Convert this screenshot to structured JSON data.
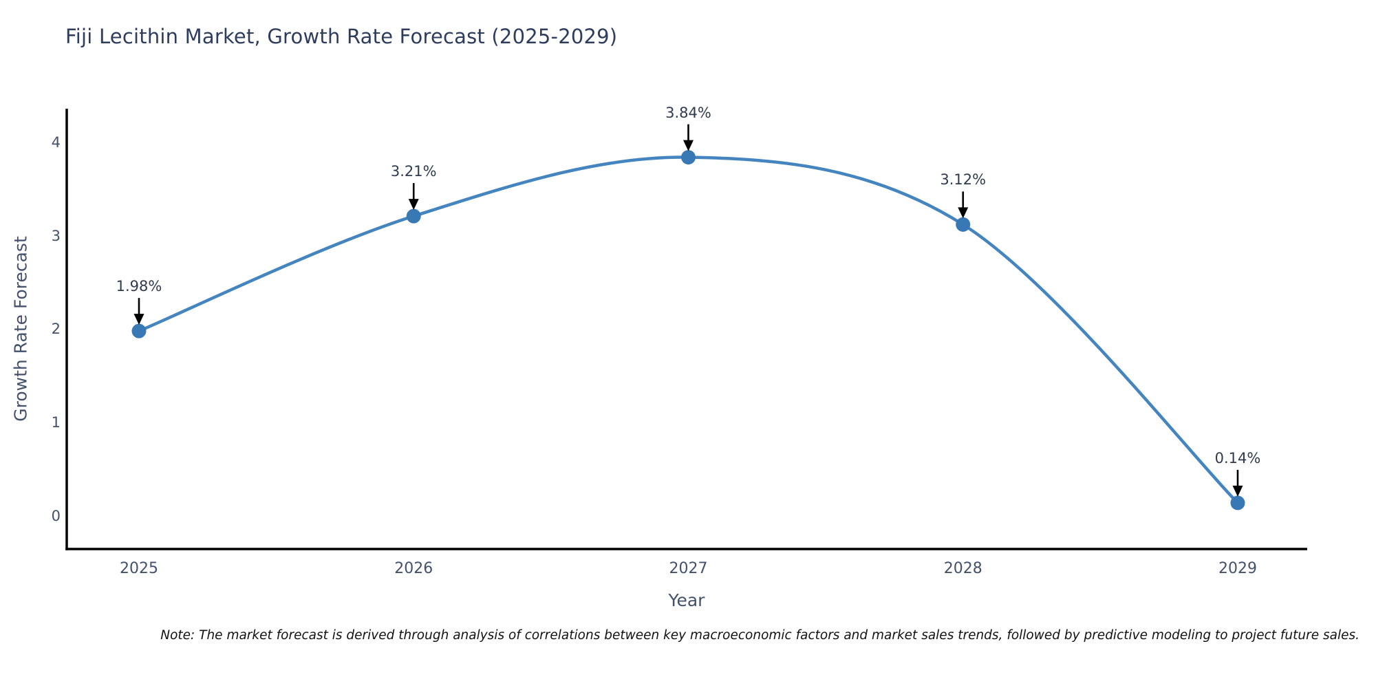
{
  "chart_data": {
    "type": "line",
    "title": "Fiji Lecithin Market, Growth Rate Forecast (2025-2029)",
    "xlabel": "Year",
    "ylabel": "Growth Rate Forecast",
    "x": [
      2025,
      2026,
      2027,
      2028,
      2029
    ],
    "y": [
      1.98,
      3.21,
      3.84,
      3.12,
      0.14
    ],
    "series": [
      {
        "name": "Growth Rate Forecast",
        "values": [
          1.98,
          3.21,
          3.84,
          3.12,
          0.14
        ]
      }
    ],
    "annotations": [
      "1.98%",
      "3.21%",
      "3.84%",
      "3.12%",
      "0.14%"
    ],
    "x_tick_labels": [
      "2025",
      "2026",
      "2027",
      "2028",
      "2029"
    ],
    "y_tick_values": [
      0,
      1,
      2,
      3,
      4
    ],
    "xlim": [
      2024.737,
      2029.253
    ],
    "ylim": [
      -0.354,
      4.36
    ],
    "grid": false,
    "legend_position": "none",
    "curve": "spline",
    "colors": {
      "line": "#4484bf",
      "marker": "#3878b4",
      "axis_line": "#000000",
      "title_text": "#2e3d5e",
      "tick_text": "#44516b",
      "annotation_text": "#2f3b4c",
      "arrow": "#000000"
    }
  },
  "footnote": "Note: The market forecast is derived through analysis of correlations between key macroeconomic factors and market sales trends, followed by predictive modeling to project future sales."
}
